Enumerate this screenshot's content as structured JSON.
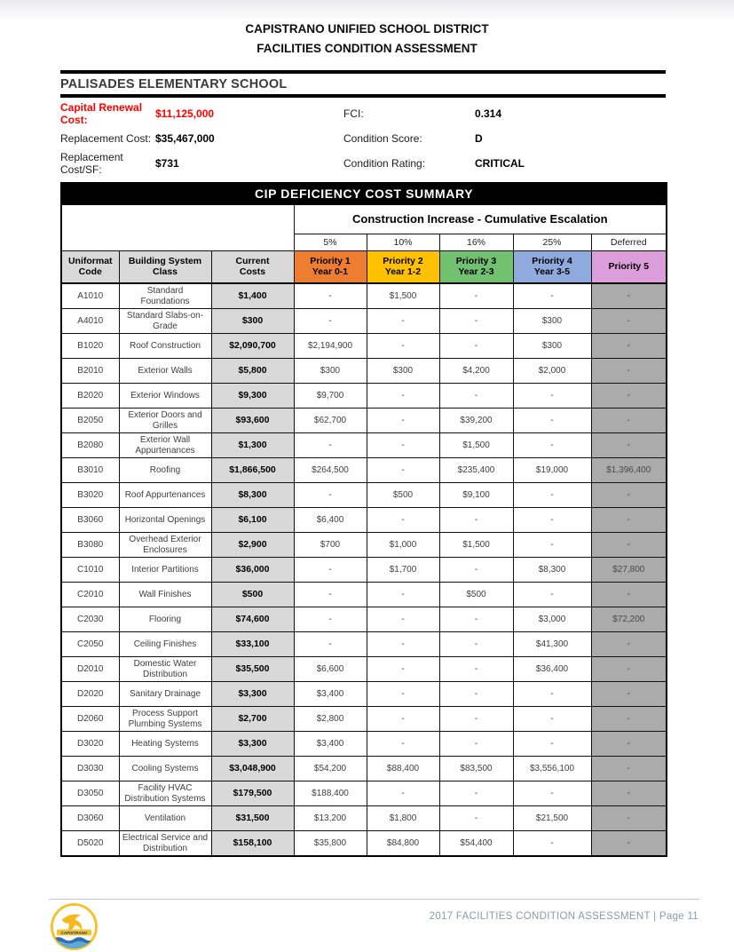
{
  "header": {
    "district": "CAPISTRANO UNIFIED SCHOOL DISTRICT",
    "report": "FACILITIES CONDITION ASSESSMENT",
    "school": "PALISADES ELEMENTARY SCHOOL"
  },
  "info": {
    "left": [
      {
        "label": "Capital Renewal Cost:",
        "value": "$11,125,000"
      },
      {
        "label": "Replacement Cost:",
        "value": "$35,467,000"
      },
      {
        "label": "Replacement Cost/SF:",
        "value": "$731"
      }
    ],
    "right": [
      {
        "label": "FCI:",
        "value": "0.314"
      },
      {
        "label": "Condition Score:",
        "value": "D"
      },
      {
        "label": "Condition Rating:",
        "value": "CRITICAL"
      }
    ]
  },
  "table": {
    "title": "CIP DEFICIENCY COST SUMMARY",
    "escalation_title": "Construction Increase - Cumulative Escalation",
    "escalation_rates": [
      "5%",
      "10%",
      "16%",
      "25%",
      "Deferred"
    ],
    "columns": [
      {
        "id": "code",
        "line1": "Uniformat",
        "line2": "Code"
      },
      {
        "id": "class",
        "line1": "Building System",
        "line2": "Class"
      },
      {
        "id": "current",
        "line1": "Current",
        "line2": "Costs"
      },
      {
        "id": "p1",
        "line1": "Priority 1",
        "line2": "Year 0-1"
      },
      {
        "id": "p2",
        "line1": "Priority 2",
        "line2": "Year 1-2"
      },
      {
        "id": "p3",
        "line1": "Priority 3",
        "line2": "Year 2-3"
      },
      {
        "id": "p4",
        "line1": "Priority 4",
        "line2": "Year 3-5"
      },
      {
        "id": "p5",
        "line1": "Priority 5",
        "line2": ""
      }
    ],
    "rows": [
      {
        "code": "A1010",
        "class": "Standard Foundations",
        "current": "$1,400",
        "p1": "-",
        "p2": "$1,500",
        "p3": "-",
        "p4": "-",
        "p5": "-"
      },
      {
        "code": "A4010",
        "class": "Standard Slabs-on-Grade",
        "current": "$300",
        "p1": "-",
        "p2": "-",
        "p3": "-",
        "p4": "$300",
        "p5": "-"
      },
      {
        "code": "B1020",
        "class": "Roof Construction",
        "current": "$2,090,700",
        "p1": "$2,194,900",
        "p2": "-",
        "p3": "-",
        "p4": "$300",
        "p5": "-"
      },
      {
        "code": "B2010",
        "class": "Exterior Walls",
        "current": "$5,800",
        "p1": "$300",
        "p2": "$300",
        "p3": "$4,200",
        "p4": "$2,000",
        "p5": "-"
      },
      {
        "code": "B2020",
        "class": "Exterior Windows",
        "current": "$9,300",
        "p1": "$9,700",
        "p2": "-",
        "p3": "-",
        "p4": "-",
        "p5": "-"
      },
      {
        "code": "B2050",
        "class": "Exterior Doors and Grilles",
        "current": "$93,600",
        "p1": "$62,700",
        "p2": "-",
        "p3": "$39,200",
        "p4": "-",
        "p5": "-"
      },
      {
        "code": "B2080",
        "class": "Exterior Wall Appurtenances",
        "current": "$1,300",
        "p1": "-",
        "p2": "-",
        "p3": "$1,500",
        "p4": "-",
        "p5": "-"
      },
      {
        "code": "B3010",
        "class": "Roofing",
        "current": "$1,866,500",
        "p1": "$264,500",
        "p2": "-",
        "p3": "$235,400",
        "p4": "$19,000",
        "p5": "$1,396,400"
      },
      {
        "code": "B3020",
        "class": "Roof Appurtenances",
        "current": "$8,300",
        "p1": "-",
        "p2": "$500",
        "p3": "$9,100",
        "p4": "-",
        "p5": "-"
      },
      {
        "code": "B3060",
        "class": "Horizontal Openings",
        "current": "$6,100",
        "p1": "$6,400",
        "p2": "-",
        "p3": "-",
        "p4": "-",
        "p5": "-"
      },
      {
        "code": "B3080",
        "class": "Overhead Exterior Enclosures",
        "current": "$2,900",
        "p1": "$700",
        "p2": "$1,000",
        "p3": "$1,500",
        "p4": "-",
        "p5": "-"
      },
      {
        "code": "C1010",
        "class": "Interior Partitions",
        "current": "$36,000",
        "p1": "-",
        "p2": "$1,700",
        "p3": "-",
        "p4": "$8,300",
        "p5": "$27,800"
      },
      {
        "code": "C2010",
        "class": "Wall Finishes",
        "current": "$500",
        "p1": "-",
        "p2": "-",
        "p3": "$500",
        "p4": "-",
        "p5": "-"
      },
      {
        "code": "C2030",
        "class": "Flooring",
        "current": "$74,600",
        "p1": "-",
        "p2": "-",
        "p3": "-",
        "p4": "$3,000",
        "p5": "$72,200"
      },
      {
        "code": "C2050",
        "class": "Ceiling Finishes",
        "current": "$33,100",
        "p1": "-",
        "p2": "-",
        "p3": "-",
        "p4": "$41,300",
        "p5": "-"
      },
      {
        "code": "D2010",
        "class": "Domestic Water Distribution",
        "current": "$35,500",
        "p1": "$6,600",
        "p2": "-",
        "p3": "-",
        "p4": "$36,400",
        "p5": "-"
      },
      {
        "code": "D2020",
        "class": "Sanitary Drainage",
        "current": "$3,300",
        "p1": "$3,400",
        "p2": "-",
        "p3": "-",
        "p4": "-",
        "p5": "-"
      },
      {
        "code": "D2060",
        "class": "Process Support Plumbing Systems",
        "current": "$2,700",
        "p1": "$2,800",
        "p2": "-",
        "p3": "-",
        "p4": "-",
        "p5": "-"
      },
      {
        "code": "D3020",
        "class": "Heating Systems",
        "current": "$3,300",
        "p1": "$3,400",
        "p2": "-",
        "p3": "-",
        "p4": "-",
        "p5": "-"
      },
      {
        "code": "D3030",
        "class": "Cooling Systems",
        "current": "$3,048,900",
        "p1": "$54,200",
        "p2": "$88,400",
        "p3": "$83,500",
        "p4": "$3,556,100",
        "p5": "-"
      },
      {
        "code": "D3050",
        "class": "Facility HVAC Distribution Systems",
        "current": "$179,500",
        "p1": "$188,400",
        "p2": "-",
        "p3": "-",
        "p4": "-",
        "p5": "-"
      },
      {
        "code": "D3060",
        "class": "Ventilation",
        "current": "$31,500",
        "p1": "$13,200",
        "p2": "$1,800",
        "p3": "-",
        "p4": "$21,500",
        "p5": "-"
      },
      {
        "code": "D5020",
        "class": "Electrical Service and Distribution",
        "current": "$158,100",
        "p1": "$35,800",
        "p2": "$84,800",
        "p3": "$54,400",
        "p4": "-",
        "p5": "-"
      }
    ]
  },
  "footer": {
    "text": "2017 FACILITIES CONDITION ASSESSMENT  |  Page 11",
    "logo_name": "Capistrano Unified School District logo",
    "logo_text": "CAPISTRANO"
  },
  "colors": {
    "priority1": "#ED7D31",
    "priority2": "#FFC000",
    "priority3": "#71C171",
    "priority4": "#8FAADC",
    "priority5_header": "#DC9EDA",
    "priority5_cells": "#ABABAB",
    "header_gray": "#D9D9D9",
    "capital_renewal_red": "#FF0000",
    "cip_bar": "#000000",
    "footer_text": "#8A9AA9"
  }
}
